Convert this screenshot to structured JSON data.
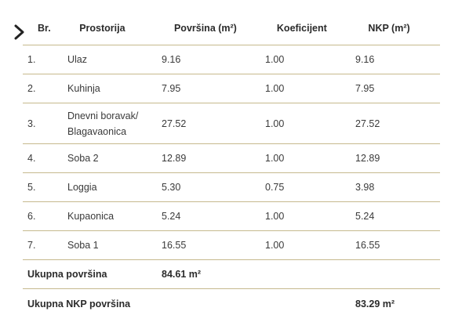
{
  "headers": {
    "br": "Br.",
    "prostorija": "Prostorija",
    "povrsina": "Površina (m²)",
    "koeficijent": "Koeficijent",
    "nkp": "NKP (m²)"
  },
  "rows": [
    {
      "br": "1.",
      "prostorija": "Ulaz",
      "povrsina": "9.16",
      "koeficijent": "1.00",
      "nkp": "9.16"
    },
    {
      "br": "2.",
      "prostorija": "Kuhinja",
      "povrsina": "7.95",
      "koeficijent": "1.00",
      "nkp": "7.95"
    },
    {
      "br": "3.",
      "prostorija": "Dnevni boravak/ Blagavaonica",
      "povrsina": "27.52",
      "koeficijent": "1.00",
      "nkp": "27.52"
    },
    {
      "br": "4.",
      "prostorija": "Soba 2",
      "povrsina": "12.89",
      "koeficijent": "1.00",
      "nkp": "12.89"
    },
    {
      "br": "5.",
      "prostorija": "Loggia",
      "povrsina": "5.30",
      "koeficijent": "0.75",
      "nkp": "3.98"
    },
    {
      "br": "6.",
      "prostorija": "Kupaonica",
      "povrsina": "5.24",
      "koeficijent": "1.00",
      "nkp": "5.24"
    },
    {
      "br": "7.",
      "prostorija": "Soba 1",
      "povrsina": "16.55",
      "koeficijent": "1.00",
      "nkp": "16.55"
    }
  ],
  "totals": {
    "ukupna_label": "Ukupna površina",
    "ukupna_value": "84.61 m²",
    "nkp_label": "Ukupna NKP površina",
    "nkp_value": "83.29 m²"
  },
  "icons": {
    "nav": "chevron-right-icon"
  },
  "colors": {
    "divider": "#c6b98d",
    "text": "#3a3a3a"
  }
}
